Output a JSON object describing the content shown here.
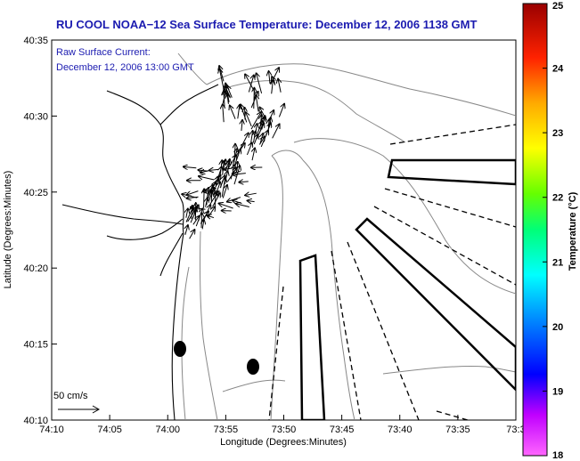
{
  "title": "RU COOL  NOAA−12  Sea Surface Temperature:  December 12, 2006 1138 GMT",
  "legend": {
    "line1": "Raw Surface Current:",
    "line2": "December 12, 2006 13:00 GMT",
    "scale_label": "50 cm/s"
  },
  "axes": {
    "xlabel": "Longitude (Degrees:Minutes)",
    "ylabel": "Latitude (Degrees:Minutes)",
    "x_ticks": [
      "74:10",
      "74:05",
      "74:00",
      "73:55",
      "73:50",
      "73:45",
      "73:40",
      "73:35",
      "73:3"
    ],
    "y_ticks": [
      "40:35",
      "40:30",
      "40:25",
      "40:20",
      "40:15",
      "40:10"
    ]
  },
  "colorbar": {
    "label": "Temperature (°C)",
    "ticks": [
      "25",
      "24",
      "23",
      "22",
      "21",
      "20",
      "19",
      "18"
    ],
    "range": [
      18,
      25
    ],
    "colors": [
      "#ff66ff",
      "#d000ff",
      "#0000ff",
      "#0088ff",
      "#00ffff",
      "#00ff66",
      "#66ff00",
      "#ffff00",
      "#ffaa00",
      "#ff4400",
      "#ff0000",
      "#990000"
    ]
  },
  "map": {
    "x_range": [
      "74:10",
      "73:30"
    ],
    "y_range": [
      "40:10",
      "40:35"
    ],
    "marker_icon": "buoy-dot",
    "arrow_icon": "current-vector-arrow"
  }
}
